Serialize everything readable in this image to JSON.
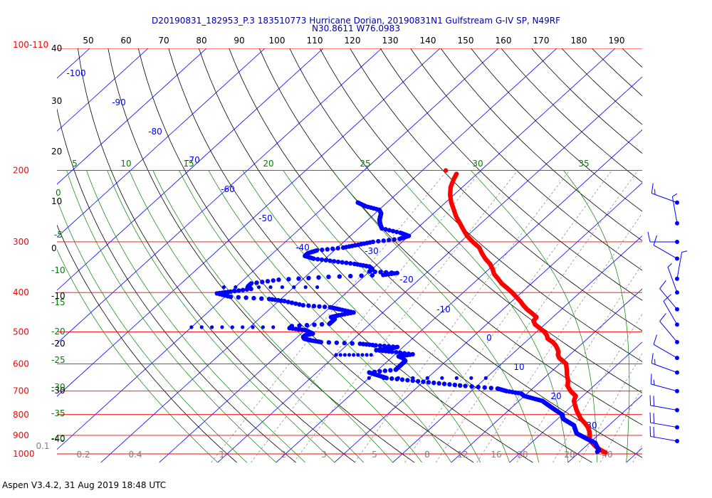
{
  "title_line1": "D20190831_182953_P.3 183510773 Hurricane Dorian, 20190831N1 Gulfstream G-IV SP, N49RF",
  "title_line2": "N30.8611 W76.0983",
  "footer": "Aspen V3.4.2, 31 Aug 2019  18:48 UTC",
  "colors": {
    "pressure": "#ff0000",
    "dry_adiabat": "#000000",
    "moist_adiabat": "#008000",
    "mixing_ratio": "#808080",
    "isotherm": "#0000ff",
    "temperature": "#ff0000",
    "dewpoint": "#0000ff",
    "wind": "#0000ff",
    "title": "#0000aa"
  },
  "chart_data": {
    "type": "skew-t log-p",
    "pressure_axis": {
      "label": "100-110",
      "ticks": [
        "200",
        "300",
        "400",
        "500",
        "600",
        "700",
        "800",
        "900",
        "1000"
      ],
      "ylim": [
        1000,
        100
      ]
    },
    "dry_adiabat_labels": [
      "50",
      "60",
      "70",
      "80",
      "90",
      "100",
      "110",
      "120",
      "130",
      "140",
      "150",
      "160",
      "170",
      "180",
      "190"
    ],
    "left_theta_labels": [
      "40",
      "30",
      "20",
      "10",
      "0",
      "-10",
      "-20",
      "-30",
      "-40"
    ],
    "isotherm_labels": [
      "-100",
      "-90",
      "-80",
      "-70",
      "-60",
      "-50",
      "-40",
      "-30",
      "-20",
      "-10",
      "0",
      "10",
      "20",
      "30"
    ],
    "moist_adiabat_labels": [
      "5",
      "10",
      "15",
      "20",
      "25",
      "30",
      "35"
    ],
    "moist_adiabat_left_labels": [
      "0",
      "-5",
      "-10",
      "-15",
      "-20",
      "-25",
      "-30",
      "-35",
      "-40"
    ],
    "mixing_ratio_labels": [
      "0.1",
      "0.2",
      "0.4",
      "1",
      "2",
      "3",
      "5",
      "8",
      "12",
      "16",
      "20",
      "28",
      "40"
    ],
    "temperature": {
      "name": "Temperature",
      "points": [
        [
          204,
          -53.5
        ],
        [
          210,
          -53
        ],
        [
          220,
          -52
        ],
        [
          230,
          -50.6
        ],
        [
          240,
          -49
        ],
        [
          250,
          -47.2
        ],
        [
          260,
          -45.5
        ],
        [
          270,
          -43.6
        ],
        [
          280,
          -41.8
        ],
        [
          290,
          -40
        ],
        [
          300,
          -37.9
        ],
        [
          310,
          -35.7
        ],
        [
          320,
          -34.2
        ],
        [
          330,
          -32.6
        ],
        [
          340,
          -30.8
        ],
        [
          350,
          -29.4
        ],
        [
          360,
          -28.2
        ],
        [
          370,
          -26.6
        ],
        [
          380,
          -25.1
        ],
        [
          390,
          -23.3
        ],
        [
          400,
          -21.6
        ],
        [
          410,
          -20.1
        ],
        [
          420,
          -18.6
        ],
        [
          430,
          -17.3
        ],
        [
          440,
          -15.9
        ],
        [
          450,
          -14.3
        ],
        [
          460,
          -12.8
        ],
        [
          470,
          -12.6
        ],
        [
          480,
          -11.6
        ],
        [
          490,
          -10.1
        ],
        [
          500,
          -8.7
        ],
        [
          510,
          -7.6
        ],
        [
          520,
          -6.8
        ],
        [
          530,
          -5.3
        ],
        [
          540,
          -4.2
        ],
        [
          550,
          -3.3
        ],
        [
          560,
          -2.5
        ],
        [
          570,
          -2.0
        ],
        [
          580,
          -1.2
        ],
        [
          590,
          0.0
        ],
        [
          600,
          1.1
        ],
        [
          620,
          2.3
        ],
        [
          640,
          3.4
        ],
        [
          660,
          4.6
        ],
        [
          680,
          5.5
        ],
        [
          700,
          7.0
        ],
        [
          720,
          8.8
        ],
        [
          740,
          9.4
        ],
        [
          760,
          10.5
        ],
        [
          780,
          11.6
        ],
        [
          800,
          12.8
        ],
        [
          820,
          14.0
        ],
        [
          840,
          15.5
        ],
        [
          860,
          16.8
        ],
        [
          880,
          17.8
        ],
        [
          900,
          18.6
        ],
        [
          920,
          19.3
        ],
        [
          940,
          20.5
        ],
        [
          960,
          21.8
        ],
        [
          980,
          23.4
        ],
        [
          995,
          24.8
        ]
      ],
      "isolated_point": [
        200,
        -56
      ]
    },
    "dewpoint": {
      "name": "Dewpoint",
      "points": [
        [
          240,
          -65
        ],
        [
          245,
          -63
        ],
        [
          250,
          -60
        ],
        [
          255,
          -59
        ],
        [
          260,
          -58.5
        ],
        [
          265,
          -58
        ],
        [
          272,
          -57
        ],
        [
          278,
          -56
        ],
        [
          285,
          -52
        ],
        [
          290,
          -50
        ],
        [
          295,
          -51
        ],
        [
          300,
          -55
        ],
        [
          305,
          -57
        ],
        [
          310,
          -59
        ],
        [
          315,
          -63
        ],
        [
          320,
          -64
        ],
        [
          325,
          -64
        ],
        [
          330,
          -62
        ],
        [
          335,
          -58
        ],
        [
          340,
          -54
        ],
        [
          345,
          -51
        ],
        [
          350,
          -50
        ],
        [
          355,
          -50
        ],
        [
          358,
          -45
        ],
        [
          362,
          -47
        ],
        [
          366,
          -56
        ],
        [
          372,
          -64
        ],
        [
          380,
          -68
        ],
        [
          386,
          -68
        ],
        [
          392,
          -67
        ],
        [
          398,
          -70
        ],
        [
          402,
          -72
        ],
        [
          410,
          -69
        ],
        [
          415,
          -62
        ],
        [
          420,
          -59
        ],
        [
          430,
          -55
        ],
        [
          435,
          -50
        ],
        [
          440,
          -48
        ],
        [
          448,
          -45
        ],
        [
          455,
          -47
        ],
        [
          460,
          -48
        ],
        [
          465,
          -47
        ],
        [
          470,
          -47
        ],
        [
          478,
          -47
        ],
        [
          484,
          -53
        ],
        [
          490,
          -53
        ],
        [
          495,
          -50
        ],
        [
          500,
          -49
        ],
        [
          505,
          -48
        ],
        [
          510,
          -49
        ],
        [
          515,
          -49
        ],
        [
          520,
          -48.5
        ],
        [
          525,
          -47
        ],
        [
          530,
          -45
        ],
        [
          535,
          -38
        ],
        [
          540,
          -35
        ],
        [
          545,
          -31
        ],
        [
          550,
          -32
        ],
        [
          555,
          -34
        ],
        [
          560,
          -31
        ],
        [
          568,
          -27
        ],
        [
          575,
          -29
        ],
        [
          580,
          -28
        ],
        [
          590,
          -27
        ],
        [
          600,
          -27
        ],
        [
          610,
          -27
        ],
        [
          620,
          -27
        ],
        [
          630,
          -31
        ],
        [
          640,
          -29
        ],
        [
          650,
          -27
        ],
        [
          660,
          -22
        ],
        [
          670,
          -17
        ],
        [
          680,
          -12
        ],
        [
          690,
          -6
        ],
        [
          700,
          -4
        ],
        [
          710,
          -1
        ],
        [
          720,
          0
        ],
        [
          730,
          2
        ],
        [
          740,
          4
        ],
        [
          750,
          5
        ],
        [
          760,
          6
        ],
        [
          770,
          7
        ],
        [
          780,
          8
        ],
        [
          790,
          9
        ],
        [
          800,
          10
        ],
        [
          810,
          10.5
        ],
        [
          820,
          11
        ],
        [
          830,
          12
        ],
        [
          840,
          13
        ],
        [
          850,
          14
        ],
        [
          860,
          14.5
        ],
        [
          870,
          15
        ],
        [
          880,
          15.5
        ],
        [
          890,
          16
        ],
        [
          900,
          17
        ],
        [
          910,
          18
        ],
        [
          920,
          19
        ],
        [
          930,
          20
        ],
        [
          940,
          21
        ],
        [
          950,
          21.5
        ],
        [
          960,
          22
        ],
        [
          970,
          22.5
        ],
        [
          980,
          23
        ],
        [
          990,
          23
        ]
      ],
      "dotted_segments": [
        [
          [
            388,
            -72
          ],
          [
            388,
            -56
          ]
        ],
        [
          [
            487,
            -70
          ],
          [
            487,
            -56
          ]
        ],
        [
          [
            650,
            -30
          ],
          [
            650,
            -10
          ]
        ],
        [
          [
            570,
            -40
          ],
          [
            570,
            -34
          ]
        ]
      ]
    },
    "wind_barbs": [
      {
        "p": 240,
        "speed_kt": 15,
        "dir_deg": 290
      },
      {
        "p": 270,
        "speed_kt": 5,
        "dir_deg": 350
      },
      {
        "p": 300,
        "speed_kt": 10,
        "dir_deg": 270
      },
      {
        "p": 330,
        "speed_kt": 10,
        "dir_deg": 300
      },
      {
        "p": 370,
        "speed_kt": 5,
        "dir_deg": 10
      },
      {
        "p": 400,
        "speed_kt": 5,
        "dir_deg": 340
      },
      {
        "p": 440,
        "speed_kt": 10,
        "dir_deg": 320
      },
      {
        "p": 480,
        "speed_kt": 10,
        "dir_deg": 330
      },
      {
        "p": 530,
        "speed_kt": 10,
        "dir_deg": 320
      },
      {
        "p": 580,
        "speed_kt": 10,
        "dir_deg": 300
      },
      {
        "p": 630,
        "speed_kt": 15,
        "dir_deg": 290
      },
      {
        "p": 700,
        "speed_kt": 15,
        "dir_deg": 285
      },
      {
        "p": 780,
        "speed_kt": 20,
        "dir_deg": 280
      },
      {
        "p": 860,
        "speed_kt": 20,
        "dir_deg": 280
      },
      {
        "p": 930,
        "speed_kt": 20,
        "dir_deg": 280
      }
    ]
  }
}
